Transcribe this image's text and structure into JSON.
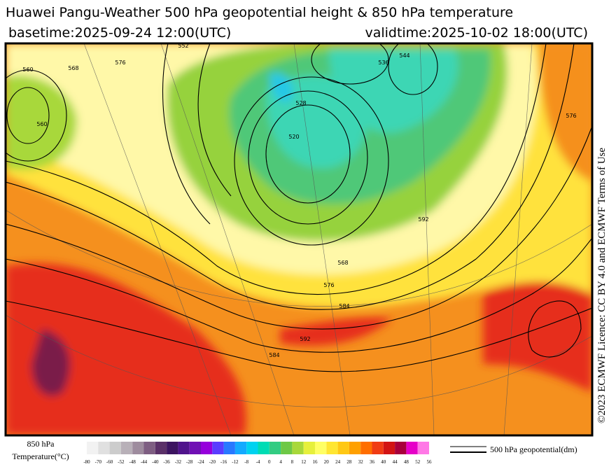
{
  "header": {
    "title": "Huawei Pangu-Weather 500 hPa geopotential height & 850 hPa temperature",
    "basetime": "basetime:2025-09-24 12:00(UTC)",
    "validtime": "validtime:2025-10-02 18:00(UTC)"
  },
  "licence": "©2023 ECMWF Licence: CC BY 4.0 and ECMWF Terms of Use",
  "contour_labels": [
    "560",
    "552",
    "568",
    "576",
    "528",
    "520",
    "536",
    "544",
    "560",
    "568",
    "576",
    "584",
    "592",
    "592",
    "576",
    "584"
  ],
  "colorbar": {
    "title_line1": "850 hPa",
    "title_line2": "Temperature(°C)",
    "ticks": [
      -80,
      -70,
      -60,
      -52,
      -48,
      -44,
      -40,
      -36,
      -32,
      -28,
      -24,
      -20,
      -16,
      -12,
      -8,
      -4,
      0,
      4,
      8,
      12,
      16,
      20,
      24,
      28,
      32,
      36,
      40,
      44,
      48,
      52,
      56
    ],
    "colors": [
      "#f2f2f2",
      "#e0e0e0",
      "#cccccc",
      "#b8b0b8",
      "#9e8c9e",
      "#7e5e82",
      "#5a3068",
      "#3c1460",
      "#50148c",
      "#7010b4",
      "#9600dc",
      "#5a3cff",
      "#2878ff",
      "#14aaff",
      "#00d2f0",
      "#00dcb4",
      "#32cc82",
      "#6ec846",
      "#a8d83a",
      "#e6f03c",
      "#ffff64",
      "#ffe632",
      "#ffc814",
      "#ffa000",
      "#ff6e00",
      "#f03c14",
      "#d21414",
      "#a8003c",
      "#e600c8",
      "#ff78e6"
    ]
  },
  "legend": {
    "label": "500 hPa geopotential(dm)"
  }
}
